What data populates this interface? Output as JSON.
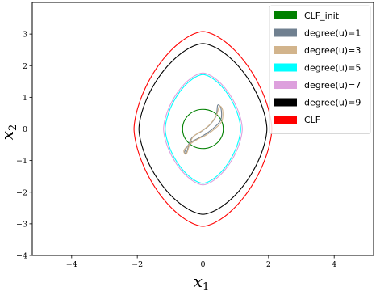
{
  "chart_data": {
    "type": "line",
    "xlabel": "x",
    "xlabel_sub": "1",
    "ylabel": "x",
    "ylabel_sub": "2",
    "xlim": [
      -5.2,
      5.2
    ],
    "ylim": [
      -4.0,
      4.0
    ],
    "xticks": [
      -4,
      -2,
      0,
      2,
      4
    ],
    "yticks": [
      -4,
      -3,
      -2,
      -1,
      0,
      1,
      2,
      3
    ],
    "xtick_labels": [
      "−4",
      "−2",
      "0",
      "2",
      "4"
    ],
    "ytick_labels": [
      "−4",
      "−3",
      "−2",
      "−1",
      "0",
      "1",
      "2",
      "3"
    ],
    "grid": false,
    "legend_position": "top-right",
    "series": [
      {
        "name": "CLF_init",
        "kind": "circle",
        "color": "#008000",
        "center": [
          0,
          0
        ],
        "radius": 0.62
      },
      {
        "name": "degree(u)=1",
        "kind": "closed-curve",
        "color": "#708090",
        "points": [
          [
            0.45,
            0.75
          ],
          [
            0.55,
            0.65
          ],
          [
            0.55,
            0.3
          ],
          [
            0.35,
            0.05
          ],
          [
            0.1,
            -0.15
          ],
          [
            -0.15,
            -0.3
          ],
          [
            -0.4,
            -0.45
          ],
          [
            -0.55,
            -0.7
          ],
          [
            -0.5,
            -0.75
          ],
          [
            -0.35,
            -0.3
          ],
          [
            -0.05,
            -0.08
          ],
          [
            0.2,
            0.12
          ],
          [
            0.4,
            0.4
          ]
        ]
      },
      {
        "name": "degree(u)=3",
        "kind": "closed-curve",
        "color": "#d2b48c",
        "points": [
          [
            0.5,
            0.72
          ],
          [
            0.6,
            0.6
          ],
          [
            0.58,
            0.25
          ],
          [
            0.38,
            0.02
          ],
          [
            0.12,
            -0.18
          ],
          [
            -0.15,
            -0.32
          ],
          [
            -0.42,
            -0.5
          ],
          [
            -0.58,
            -0.68
          ],
          [
            -0.5,
            -0.78
          ],
          [
            -0.32,
            -0.28
          ],
          [
            -0.02,
            -0.05
          ],
          [
            0.22,
            0.15
          ],
          [
            0.42,
            0.45
          ]
        ]
      },
      {
        "name": "degree(u)=5",
        "kind": "diamond",
        "color": "#00ffff",
        "rx": 1.15,
        "ry": 1.72,
        "p": 1.6
      },
      {
        "name": "degree(u)=7",
        "kind": "diamond",
        "color": "#dda0dd",
        "rx": 1.2,
        "ry": 1.77,
        "p": 1.6
      },
      {
        "name": "degree(u)=9",
        "kind": "diamond",
        "color": "#000000",
        "rx": 1.95,
        "ry": 2.7,
        "p": 1.6
      },
      {
        "name": "CLF",
        "kind": "diamond",
        "color": "#ff0000",
        "rx": 2.1,
        "ry": 3.08,
        "p": 1.6
      }
    ]
  }
}
